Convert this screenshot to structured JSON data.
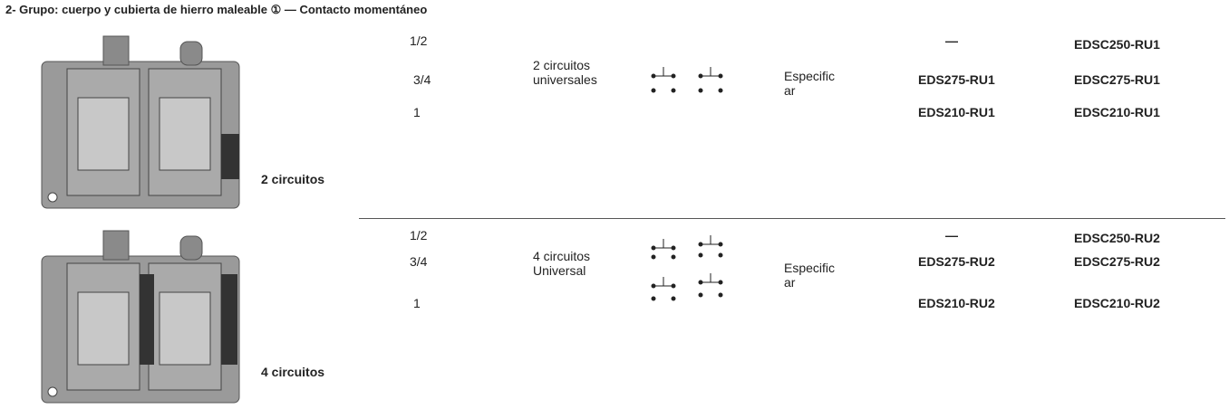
{
  "title": "2- Grupo: cuerpo y cubierta de hierro maleable ① — Contacto momentáneo",
  "rows": [
    {
      "label": "2 circuitos",
      "sizes": [
        "1/2",
        "3/4",
        "1"
      ],
      "description": [
        "2 circuitos",
        "universales"
      ],
      "spec": [
        "Especific",
        "ar"
      ],
      "codes_a": [
        "—",
        "EDS275-RU1",
        "EDS210-RU1"
      ],
      "codes_b": [
        "EDSC250-RU1",
        "EDSC275-RU1",
        "EDSC210-RU1"
      ]
    },
    {
      "label": "4 circuitos",
      "sizes": [
        "1/2",
        "3/4",
        "1"
      ],
      "description": [
        "4 circuitos",
        "Universal"
      ],
      "spec": [
        "Especific",
        "ar"
      ],
      "codes_a": [
        "—",
        "EDS275-RU2",
        "EDS210-RU2"
      ],
      "codes_b": [
        "EDSC250-RU2",
        "EDSC275-RU2",
        "EDSC210-RU2"
      ]
    }
  ]
}
